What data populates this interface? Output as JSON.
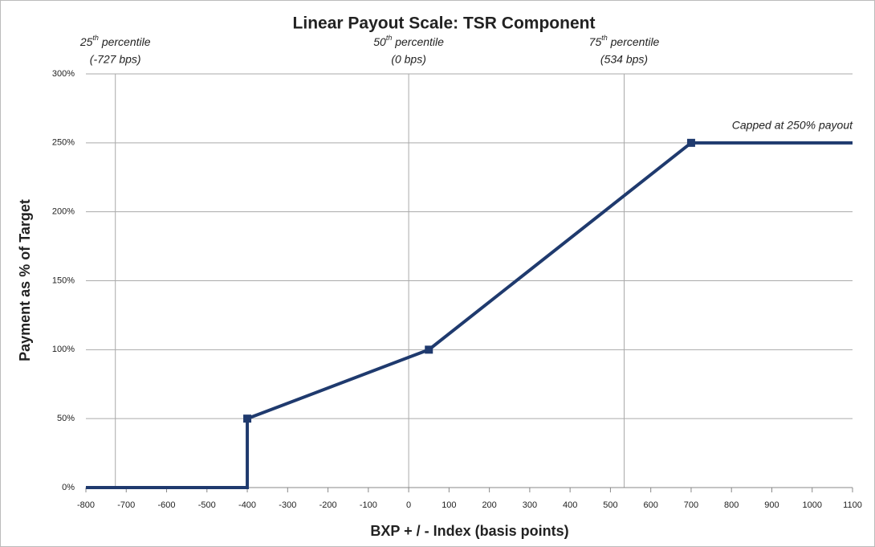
{
  "chart_data": {
    "type": "line",
    "title": "Linear Payout Scale: TSR Component",
    "x_label": "BXP + / -  Index (basis points)",
    "y_label": "Payment as % of Target",
    "xlim": [
      -800,
      1100
    ],
    "xticks": [
      -800,
      -700,
      -600,
      -500,
      -400,
      -300,
      -200,
      -100,
      0,
      100,
      200,
      300,
      400,
      500,
      600,
      700,
      800,
      900,
      1000,
      1100
    ],
    "ylim": [
      0,
      300
    ],
    "yticks": [
      {
        "value": 0,
        "label": "0%"
      },
      {
        "value": 50,
        "label": "50%"
      },
      {
        "value": 100,
        "label": "100%"
      },
      {
        "value": 150,
        "label": "150%"
      },
      {
        "value": 200,
        "label": "200%"
      },
      {
        "value": 250,
        "label": "250%"
      },
      {
        "value": 300,
        "label": "300%"
      }
    ],
    "grid": true,
    "series": [
      {
        "color": "#1f3a6e",
        "x": [
          -800,
          -400,
          -400,
          50,
          700,
          1100
        ],
        "values": [
          0,
          0,
          50,
          100,
          250,
          250
        ]
      }
    ],
    "markers": {
      "color": "#1f3a6e",
      "x": [
        -400,
        50,
        700
      ],
      "values": [
        50,
        100,
        250
      ]
    },
    "percentile_lines": [
      {
        "value": -727,
        "ordinal": "25",
        "suffix": "th",
        "label": " percentile",
        "sublabel": "(-727 bps)"
      },
      {
        "value": 0,
        "ordinal": "50",
        "suffix": "th",
        "label": " percentile",
        "sublabel": "(0 bps)"
      },
      {
        "value": 534,
        "ordinal": "75",
        "suffix": "th",
        "label": " percentile",
        "sublabel": "(534 bps)"
      }
    ],
    "annotation": {
      "text": "Capped at 250% payout",
      "x": 1100,
      "y": 250
    }
  }
}
